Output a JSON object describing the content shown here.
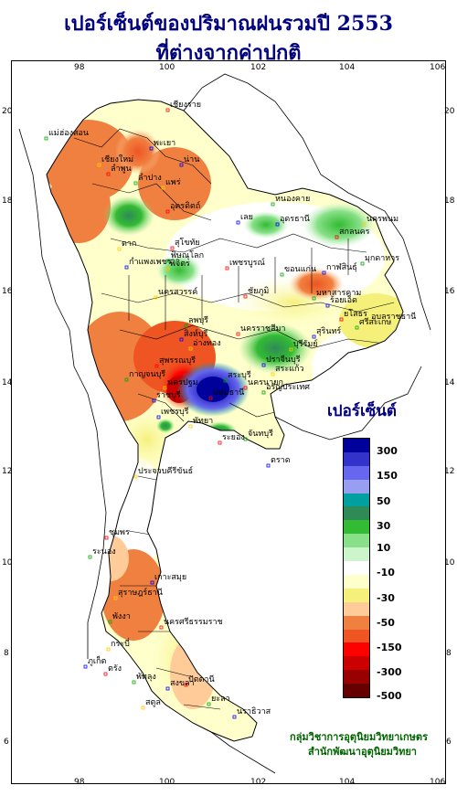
{
  "title": {
    "line1": "เปอร์เซ็นต์ของปริมาณฝนรวมปี  2553",
    "line2": "ที่ต่างจากค่าปกติ"
  },
  "axes": {
    "x_ticks": [
      "98",
      "100",
      "102",
      "104",
      "106"
    ],
    "y_ticks": [
      "20",
      "18",
      "16",
      "14",
      "12",
      "10",
      "8",
      "6"
    ]
  },
  "legend": {
    "title": "เปอร์เซ็นต์",
    "labels": [
      "300",
      "150",
      "50",
      "30",
      "10",
      "-10",
      "-30",
      "-50",
      "-150",
      "-300",
      "-500"
    ],
    "colors": [
      "#00009a",
      "#3333cc",
      "#6666ee",
      "#999ff0",
      "#00a0a0",
      "#2e8b57",
      "#33bb33",
      "#88e088",
      "#ccf5cc",
      "#ffffff",
      "#ffffcc",
      "#f5f07a",
      "#ffcc99",
      "#f08040",
      "#ee5522",
      "#ff0000",
      "#cc0000",
      "#990000",
      "#660000"
    ]
  },
  "credit": {
    "line1": "กลุ่มวิชาการอุตุนิยมวิทยาเกษตร",
    "line2": "สำนักพัฒนาอุตุนิยมวิทยา"
  },
  "places": [
    "เชียงราย",
    "แม่ฮ่องสอน",
    "พะเยา",
    "เชียงใหม่",
    "ลำพูน",
    "ลำปาง",
    "น่าน",
    "แพร่",
    "อุตรดิตถ์",
    "หนองคาย",
    "อุดรธานี",
    "นครพนม",
    "สกลนคร",
    "มุกดาหาร",
    "เลย",
    "ตาก",
    "สุโขทัย",
    "พิษณุโลก",
    "กำแพงเพชร",
    "พิจิตร",
    "เพชรบูรณ์",
    "ขอนแก่น",
    "กาฬสินธุ์",
    "นครสวรรค์",
    "ชัยภูมิ",
    "มหาสารคาม",
    "ร้อยเอ็ด",
    "อุบลราชธานี",
    "ยโสธร",
    "ศรีสะเกษ",
    "สุรินทร์",
    "บุรีรัมย์",
    "นครราชสีมา",
    "ลพบุรี",
    "สิงห์บุรี",
    "อ่างทอง",
    "สุพรรณบุรี",
    "กาญจนบุรี",
    "ราชบุรี",
    "นครปฐม",
    "ปทุมธานี",
    "สระบุรี",
    "ปราจีนบุรี",
    "สระแก้ว",
    "นครนายก",
    "อรัญประเทศ",
    "เพชรบุรี",
    "พัทยา",
    "ระยอง",
    "จันทบุรี",
    "ตราด",
    "ประจวบคีรีขันธ์",
    "ชุมพร",
    "ระนอง",
    "เกาะสมุย",
    "สุราษฎร์ธานี",
    "นครศรีธรรมราช",
    "พังงา",
    "ภูเก็ต",
    "กระบี่",
    "ตรัง",
    "พัทลุง",
    "สงขลา",
    "สตูล",
    "ปัตตานี",
    "ยะลา",
    "นราธิวาส"
  ]
}
